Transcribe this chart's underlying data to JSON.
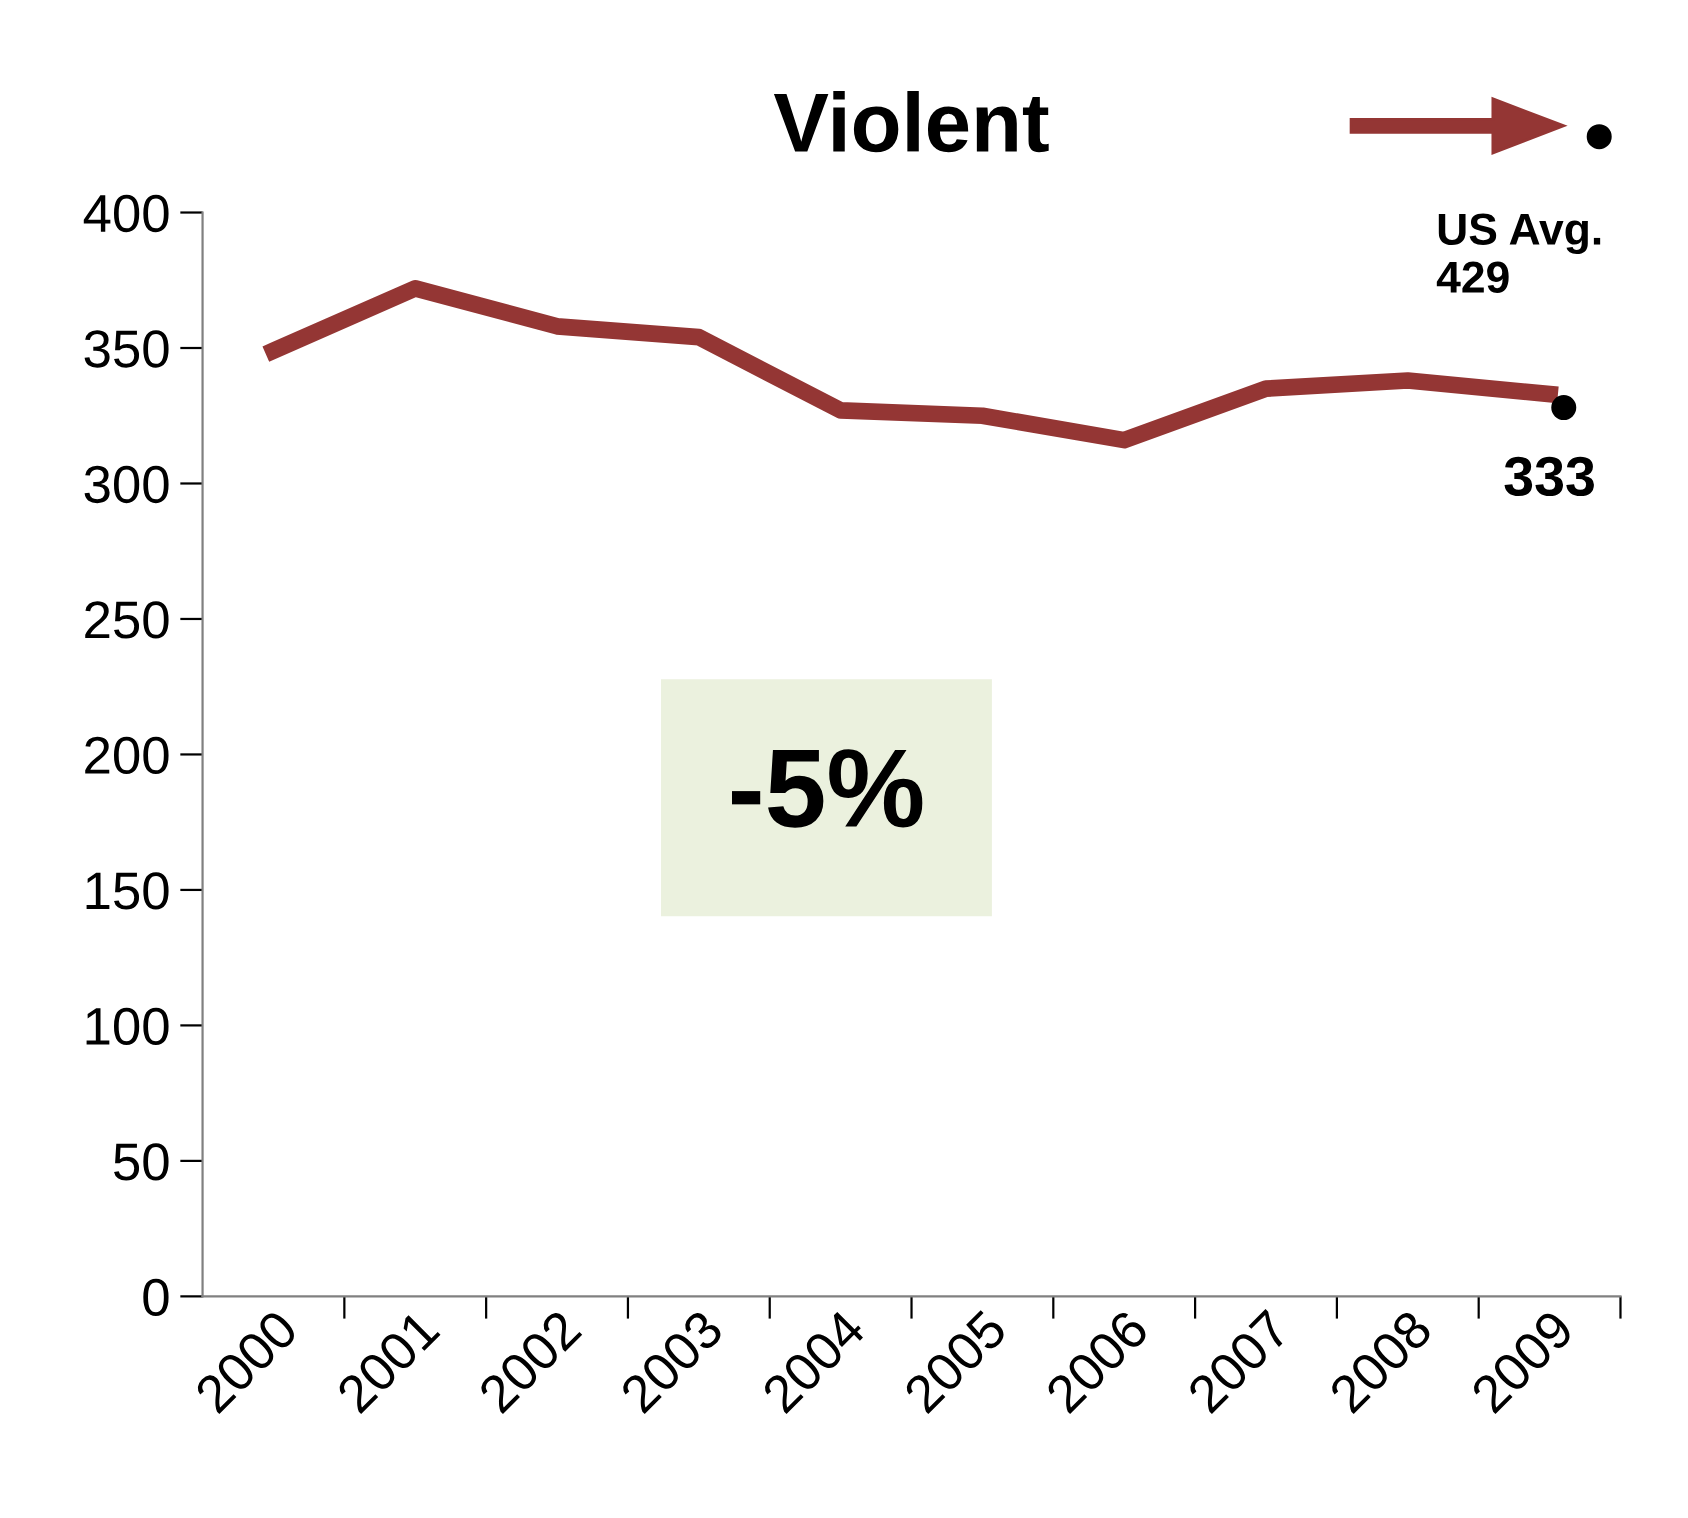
{
  "chart_data": {
    "type": "line",
    "title": "Violent",
    "categories": [
      "2000",
      "2001",
      "2002",
      "2003",
      "2004",
      "2005",
      "2006",
      "2007",
      "2008",
      "2009"
    ],
    "series": [
      {
        "color": "#943634",
        "values": [
          349,
          372,
          358,
          354,
          327,
          325,
          316,
          335,
          338,
          333
        ]
      }
    ],
    "ylim": [
      0,
      400
    ],
    "yticks": [
      0,
      50,
      100,
      150,
      200,
      250,
      300,
      350,
      400
    ],
    "grid": false,
    "legend": false,
    "marker": "none",
    "line_style": "solid",
    "annotations": [
      {
        "text": "333",
        "x": "2009",
        "y": 333
      },
      "US Avg.\n429",
      "-5%"
    ]
  }
}
